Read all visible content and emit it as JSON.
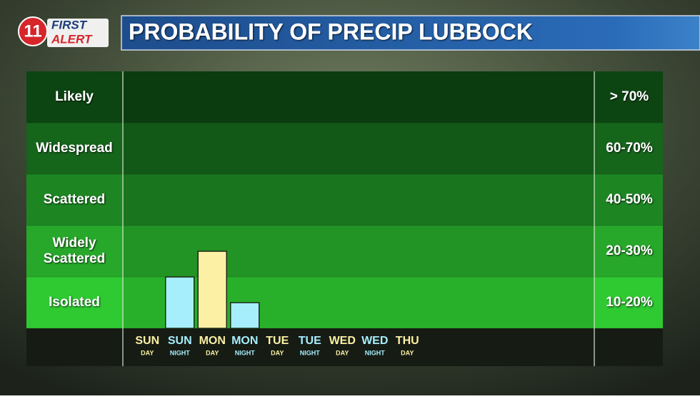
{
  "logo": {
    "number": "11",
    "line1": "FIRST",
    "line2": "ALERT"
  },
  "chart_data": {
    "type": "bar",
    "title": "PROBABILITY OF PRECIP LUBBOCK",
    "bands": [
      {
        "label": "Isolated",
        "range_label": "10-20%",
        "min": 10,
        "max": 20,
        "color": "#2fc932"
      },
      {
        "label": "Widely Scattered",
        "range_label": "20-30%",
        "min": 20,
        "max": 30,
        "color": "#27a82b"
      },
      {
        "label": "Scattered",
        "range_label": "40-50%",
        "min": 40,
        "max": 50,
        "color": "#1d8623"
      },
      {
        "label": "Widespread",
        "range_label": "60-70%",
        "min": 60,
        "max": 70,
        "color": "#15651b"
      },
      {
        "label": "Likely",
        "range_label": "> 70%",
        "min": 70,
        "color": "#0c4512"
      }
    ],
    "categories": [
      {
        "day": "SUN",
        "part": "DAY"
      },
      {
        "day": "SUN",
        "part": "NIGHT"
      },
      {
        "day": "MON",
        "part": "DAY"
      },
      {
        "day": "MON",
        "part": "NIGHT"
      },
      {
        "day": "TUE",
        "part": "DAY"
      },
      {
        "day": "TUE",
        "part": "NIGHT"
      },
      {
        "day": "WED",
        "part": "DAY"
      },
      {
        "day": "WED",
        "part": "NIGHT"
      },
      {
        "day": "THU",
        "part": "DAY"
      }
    ],
    "values": [
      null,
      20,
      25,
      15,
      null,
      null,
      null,
      null,
      null
    ],
    "day_color": "#fbf0a4",
    "night_color": "#a6eefc"
  }
}
